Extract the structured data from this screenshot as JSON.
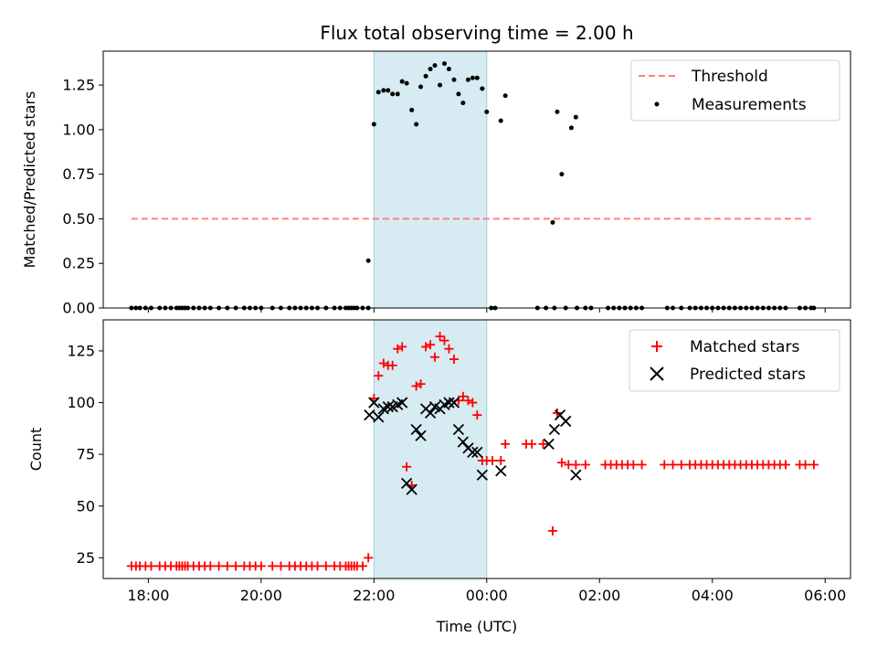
{
  "chart_data": [
    {
      "type": "scatter",
      "title": "Flux total observing time = 2.00 h",
      "ylabel": "Matched/Predicted stars",
      "xlabel": "",
      "xlim": [
        -6.8,
        6.45
      ],
      "ylim": [
        0,
        1.44
      ],
      "yticks": [
        {
          "v": 0.0,
          "label": "0.00"
        },
        {
          "v": 0.25,
          "label": "0.25"
        },
        {
          "v": 0.5,
          "label": "0.50"
        },
        {
          "v": 0.75,
          "label": "0.75"
        },
        {
          "v": 1.0,
          "label": "1.00"
        },
        {
          "v": 1.25,
          "label": "1.25"
        }
      ],
      "xticks": [
        -6,
        -4,
        -2,
        0,
        2,
        4,
        6
      ],
      "highlight_span": [
        -2.0,
        0.0
      ],
      "highlight_color": "#add8e6",
      "threshold": {
        "name": "Threshold",
        "value": 0.5,
        "x_range": [
          -6.3,
          5.8
        ],
        "color": "#ff7f7f"
      },
      "series": [
        {
          "name": "Measurements",
          "color": "#000000",
          "points": [
            [
              -6.3,
              0
            ],
            [
              -6.22,
              0
            ],
            [
              -6.15,
              0
            ],
            [
              -6.05,
              0
            ],
            [
              -5.95,
              0
            ],
            [
              -5.8,
              0
            ],
            [
              -5.7,
              0
            ],
            [
              -5.6,
              0
            ],
            [
              -5.5,
              0
            ],
            [
              -5.45,
              0
            ],
            [
              -5.4,
              0
            ],
            [
              -5.35,
              0
            ],
            [
              -5.3,
              0
            ],
            [
              -5.2,
              0
            ],
            [
              -5.1,
              0
            ],
            [
              -5.0,
              0
            ],
            [
              -4.9,
              0
            ],
            [
              -4.75,
              0
            ],
            [
              -4.6,
              0
            ],
            [
              -4.45,
              0
            ],
            [
              -4.3,
              0
            ],
            [
              -4.2,
              0
            ],
            [
              -4.1,
              0
            ],
            [
              -4.0,
              0
            ],
            [
              -3.8,
              0
            ],
            [
              -3.65,
              0
            ],
            [
              -3.5,
              0
            ],
            [
              -3.4,
              0
            ],
            [
              -3.3,
              0
            ],
            [
              -3.2,
              0
            ],
            [
              -3.1,
              0
            ],
            [
              -3.0,
              0
            ],
            [
              -2.85,
              0
            ],
            [
              -2.7,
              0
            ],
            [
              -2.6,
              0
            ],
            [
              -2.5,
              0
            ],
            [
              -2.45,
              0
            ],
            [
              -2.4,
              0
            ],
            [
              -2.35,
              0
            ],
            [
              -2.3,
              0
            ],
            [
              -2.2,
              0
            ],
            [
              -2.1,
              0
            ],
            [
              -2.1,
              0.265
            ],
            [
              -2.0,
              1.03
            ],
            [
              -1.92,
              1.21
            ],
            [
              -1.83,
              1.22
            ],
            [
              -1.75,
              1.22
            ],
            [
              -1.67,
              1.2
            ],
            [
              -1.58,
              1.2
            ],
            [
              -1.5,
              1.27
            ],
            [
              -1.42,
              1.26
            ],
            [
              -1.33,
              1.11
            ],
            [
              -1.25,
              1.03
            ],
            [
              -1.17,
              1.24
            ],
            [
              -1.08,
              1.3
            ],
            [
              -1.0,
              1.34
            ],
            [
              -0.92,
              1.36
            ],
            [
              -0.83,
              1.25
            ],
            [
              -0.75,
              1.37
            ],
            [
              -0.67,
              1.34
            ],
            [
              -0.58,
              1.28
            ],
            [
              -0.5,
              1.2
            ],
            [
              -0.42,
              1.15
            ],
            [
              -0.33,
              1.28
            ],
            [
              -0.25,
              1.29
            ],
            [
              -0.17,
              1.29
            ],
            [
              -0.08,
              1.23
            ],
            [
              0.0,
              1.1
            ],
            [
              0.25,
              1.05
            ],
            [
              0.33,
              1.19
            ],
            [
              1.17,
              0.48
            ],
            [
              1.25,
              1.1
            ],
            [
              1.33,
              0.75
            ],
            [
              1.5,
              1.01
            ],
            [
              1.58,
              1.07
            ],
            [
              0.08,
              0
            ],
            [
              0.15,
              0
            ],
            [
              0.9,
              0
            ],
            [
              1.05,
              0
            ],
            [
              1.2,
              0
            ],
            [
              1.4,
              0
            ],
            [
              1.6,
              0
            ],
            [
              1.75,
              0
            ],
            [
              1.85,
              0
            ],
            [
              2.15,
              0
            ],
            [
              2.25,
              0
            ],
            [
              2.35,
              0
            ],
            [
              2.45,
              0
            ],
            [
              2.55,
              0
            ],
            [
              2.65,
              0
            ],
            [
              2.75,
              0
            ],
            [
              3.2,
              0
            ],
            [
              3.3,
              0
            ],
            [
              3.45,
              0
            ],
            [
              3.6,
              0
            ],
            [
              3.7,
              0
            ],
            [
              3.8,
              0
            ],
            [
              3.9,
              0
            ],
            [
              4.0,
              0
            ],
            [
              4.1,
              0
            ],
            [
              4.2,
              0
            ],
            [
              4.3,
              0
            ],
            [
              4.4,
              0
            ],
            [
              4.5,
              0
            ],
            [
              4.6,
              0
            ],
            [
              4.7,
              0
            ],
            [
              4.8,
              0
            ],
            [
              4.9,
              0
            ],
            [
              5.0,
              0
            ],
            [
              5.1,
              0
            ],
            [
              5.2,
              0
            ],
            [
              5.3,
              0
            ],
            [
              5.55,
              0
            ],
            [
              5.65,
              0
            ],
            [
              5.75,
              0
            ],
            [
              5.8,
              0
            ]
          ]
        }
      ],
      "legend": {
        "position": "upper right",
        "entries": [
          "Threshold",
          "Measurements"
        ]
      }
    },
    {
      "type": "scatter",
      "title": "",
      "ylabel": "Count",
      "xlabel": "Time (UTC)",
      "xlim": [
        -6.8,
        6.45
      ],
      "ylim": [
        15,
        140
      ],
      "yticks": [
        {
          "v": 25,
          "label": "25"
        },
        {
          "v": 50,
          "label": "50"
        },
        {
          "v": 75,
          "label": "75"
        },
        {
          "v": 100,
          "label": "100"
        },
        {
          "v": 125,
          "label": "125"
        }
      ],
      "xticks": [
        -6,
        -4,
        -2,
        0,
        2,
        4,
        6
      ],
      "xtick_labels": [
        "18:00",
        "20:00",
        "22:00",
        "00:00",
        "02:00",
        "04:00",
        "06:00"
      ],
      "highlight_span": [
        -2.0,
        0.0
      ],
      "highlight_color": "#add8e6",
      "series": [
        {
          "name": "Matched stars",
          "marker": "plus",
          "color": "#ff0000",
          "points": [
            [
              -6.3,
              21
            ],
            [
              -6.22,
              21
            ],
            [
              -6.15,
              21
            ],
            [
              -6.05,
              21
            ],
            [
              -5.95,
              21
            ],
            [
              -5.8,
              21
            ],
            [
              -5.7,
              21
            ],
            [
              -5.6,
              21
            ],
            [
              -5.5,
              21
            ],
            [
              -5.45,
              21
            ],
            [
              -5.4,
              21
            ],
            [
              -5.35,
              21
            ],
            [
              -5.3,
              21
            ],
            [
              -5.2,
              21
            ],
            [
              -5.1,
              21
            ],
            [
              -5.0,
              21
            ],
            [
              -4.9,
              21
            ],
            [
              -4.75,
              21
            ],
            [
              -4.6,
              21
            ],
            [
              -4.45,
              21
            ],
            [
              -4.3,
              21
            ],
            [
              -4.2,
              21
            ],
            [
              -4.1,
              21
            ],
            [
              -4.0,
              21
            ],
            [
              -3.8,
              21
            ],
            [
              -3.65,
              21
            ],
            [
              -3.5,
              21
            ],
            [
              -3.4,
              21
            ],
            [
              -3.3,
              21
            ],
            [
              -3.2,
              21
            ],
            [
              -3.1,
              21
            ],
            [
              -3.0,
              21
            ],
            [
              -2.85,
              21
            ],
            [
              -2.7,
              21
            ],
            [
              -2.6,
              21
            ],
            [
              -2.5,
              21
            ],
            [
              -2.45,
              21
            ],
            [
              -2.4,
              21
            ],
            [
              -2.35,
              21
            ],
            [
              -2.3,
              21
            ],
            [
              -2.2,
              21
            ],
            [
              -2.1,
              25
            ],
            [
              -2.0,
              102
            ],
            [
              -1.92,
              113
            ],
            [
              -1.83,
              119
            ],
            [
              -1.75,
              118
            ],
            [
              -1.67,
              118
            ],
            [
              -1.58,
              126
            ],
            [
              -1.5,
              127
            ],
            [
              -1.42,
              69
            ],
            [
              -1.33,
              60
            ],
            [
              -1.25,
              108
            ],
            [
              -1.17,
              109
            ],
            [
              -1.08,
              127
            ],
            [
              -1.0,
              128
            ],
            [
              -0.92,
              122
            ],
            [
              -0.83,
              132
            ],
            [
              -0.75,
              130
            ],
            [
              -0.67,
              126
            ],
            [
              -0.58,
              121
            ],
            [
              -0.5,
              101
            ],
            [
              -0.42,
              103
            ],
            [
              -0.33,
              101
            ],
            [
              -0.25,
              100
            ],
            [
              -0.17,
              94
            ],
            [
              -0.08,
              72
            ],
            [
              0.0,
              72
            ],
            [
              0.1,
              72
            ],
            [
              0.25,
              72
            ],
            [
              0.33,
              80
            ],
            [
              0.7,
              80
            ],
            [
              0.8,
              80
            ],
            [
              1.0,
              80
            ],
            [
              1.17,
              38
            ],
            [
              1.25,
              95
            ],
            [
              1.33,
              71
            ],
            [
              1.45,
              70
            ],
            [
              1.58,
              70
            ],
            [
              1.75,
              70
            ],
            [
              2.1,
              70
            ],
            [
              2.2,
              70
            ],
            [
              2.3,
              70
            ],
            [
              2.4,
              70
            ],
            [
              2.5,
              70
            ],
            [
              2.6,
              70
            ],
            [
              2.75,
              70
            ],
            [
              3.15,
              70
            ],
            [
              3.3,
              70
            ],
            [
              3.45,
              70
            ],
            [
              3.6,
              70
            ],
            [
              3.7,
              70
            ],
            [
              3.8,
              70
            ],
            [
              3.9,
              70
            ],
            [
              4.0,
              70
            ],
            [
              4.1,
              70
            ],
            [
              4.2,
              70
            ],
            [
              4.3,
              70
            ],
            [
              4.4,
              70
            ],
            [
              4.5,
              70
            ],
            [
              4.6,
              70
            ],
            [
              4.7,
              70
            ],
            [
              4.8,
              70
            ],
            [
              4.9,
              70
            ],
            [
              5.0,
              70
            ],
            [
              5.1,
              70
            ],
            [
              5.2,
              70
            ],
            [
              5.3,
              70
            ],
            [
              5.55,
              70
            ],
            [
              5.65,
              70
            ],
            [
              5.8,
              70
            ]
          ]
        },
        {
          "name": "Predicted stars",
          "marker": "x",
          "color": "#000000",
          "points": [
            [
              -2.08,
              94
            ],
            [
              -2.0,
              100
            ],
            [
              -1.92,
              93
            ],
            [
              -1.83,
              97
            ],
            [
              -1.75,
              98
            ],
            [
              -1.67,
              98
            ],
            [
              -1.58,
              99
            ],
            [
              -1.5,
              100
            ],
            [
              -1.42,
              61
            ],
            [
              -1.33,
              58
            ],
            [
              -1.25,
              87
            ],
            [
              -1.17,
              84
            ],
            [
              -1.08,
              97
            ],
            [
              -1.0,
              95
            ],
            [
              -0.92,
              98
            ],
            [
              -0.83,
              97
            ],
            [
              -0.75,
              99
            ],
            [
              -0.67,
              100
            ],
            [
              -0.58,
              100
            ],
            [
              -0.5,
              87
            ],
            [
              -0.42,
              81
            ],
            [
              -0.33,
              78
            ],
            [
              -0.25,
              76
            ],
            [
              -0.17,
              76
            ],
            [
              -0.08,
              65
            ],
            [
              0.25,
              67
            ],
            [
              1.1,
              80
            ],
            [
              1.2,
              87
            ],
            [
              1.3,
              94
            ],
            [
              1.4,
              91
            ],
            [
              1.58,
              65
            ]
          ]
        }
      ],
      "legend": {
        "position": "upper right",
        "entries": [
          "Matched stars",
          "Predicted stars"
        ]
      }
    }
  ]
}
